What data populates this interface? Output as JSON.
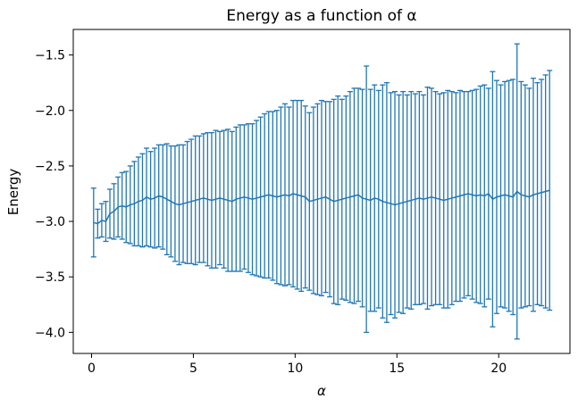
{
  "chart_data": {
    "type": "errorbar",
    "title": "Energy as a function of α",
    "xlabel": "α",
    "ylabel": "Energy",
    "xlim": [
      -0.9,
      23.5
    ],
    "ylim": [
      -4.19,
      -1.27
    ],
    "xticks": [
      0,
      5,
      10,
      15,
      20
    ],
    "yticks": [
      -4.0,
      -3.5,
      -3.0,
      -2.5,
      -2.0,
      -1.5
    ],
    "xtick_labels": [
      "0",
      "5",
      "10",
      "15",
      "20"
    ],
    "ytick_labels": [
      "−4.0",
      "−3.5",
      "−3.0",
      "−2.5",
      "−2.0",
      "−1.5"
    ],
    "grid": false,
    "color": "#1f77b4",
    "series": [
      {
        "x": [
          0.1,
          0.3,
          0.5,
          0.7,
          0.9,
          1.1,
          1.3,
          1.5,
          1.7,
          1.9,
          2.1,
          2.3,
          2.5,
          2.7,
          2.9,
          3.1,
          3.3,
          3.5,
          3.7,
          3.9,
          4.1,
          4.3,
          4.5,
          4.7,
          4.9,
          5.1,
          5.3,
          5.5,
          5.7,
          5.9,
          6.1,
          6.3,
          6.5,
          6.7,
          6.9,
          7.1,
          7.3,
          7.5,
          7.7,
          7.9,
          8.1,
          8.3,
          8.5,
          8.7,
          8.9,
          9.1,
          9.3,
          9.5,
          9.7,
          9.9,
          10.1,
          10.3,
          10.5,
          10.7,
          10.9,
          11.1,
          11.3,
          11.5,
          11.7,
          11.9,
          12.1,
          12.3,
          12.5,
          12.7,
          12.9,
          13.1,
          13.3,
          13.5,
          13.7,
          13.9,
          14.1,
          14.3,
          14.5,
          14.7,
          14.9,
          15.1,
          15.3,
          15.5,
          15.7,
          15.9,
          16.1,
          16.3,
          16.5,
          16.7,
          16.9,
          17.1,
          17.3,
          17.5,
          17.7,
          17.9,
          18.1,
          18.3,
          18.5,
          18.7,
          18.9,
          19.1,
          19.3,
          19.5,
          19.7,
          19.9,
          20.1,
          20.3,
          20.5,
          20.7,
          20.9,
          21.1,
          21.3,
          21.5,
          21.7,
          21.9,
          22.1,
          22.3,
          22.5
        ],
        "y": [
          -3.01,
          -3.02,
          -2.99,
          -3.0,
          -2.93,
          -2.91,
          -2.87,
          -2.86,
          -2.87,
          -2.85,
          -2.84,
          -2.82,
          -2.81,
          -2.78,
          -2.8,
          -2.79,
          -2.77,
          -2.78,
          -2.8,
          -2.82,
          -2.84,
          -2.85,
          -2.84,
          -2.83,
          -2.82,
          -2.81,
          -2.8,
          -2.79,
          -2.8,
          -2.81,
          -2.8,
          -2.79,
          -2.8,
          -2.81,
          -2.82,
          -2.8,
          -2.79,
          -2.78,
          -2.79,
          -2.8,
          -2.79,
          -2.78,
          -2.77,
          -2.76,
          -2.77,
          -2.78,
          -2.77,
          -2.76,
          -2.77,
          -2.75,
          -2.76,
          -2.77,
          -2.78,
          -2.82,
          -2.81,
          -2.8,
          -2.79,
          -2.78,
          -2.8,
          -2.82,
          -2.81,
          -2.8,
          -2.79,
          -2.78,
          -2.77,
          -2.76,
          -2.79,
          -2.8,
          -2.81,
          -2.79,
          -2.8,
          -2.82,
          -2.83,
          -2.84,
          -2.85,
          -2.84,
          -2.83,
          -2.82,
          -2.81,
          -2.8,
          -2.79,
          -2.8,
          -2.79,
          -2.78,
          -2.79,
          -2.8,
          -2.81,
          -2.8,
          -2.79,
          -2.78,
          -2.77,
          -2.76,
          -2.75,
          -2.76,
          -2.77,
          -2.76,
          -2.77,
          -2.75,
          -2.8,
          -2.78,
          -2.77,
          -2.76,
          -2.77,
          -2.78,
          -2.73,
          -2.76,
          -2.77,
          -2.78,
          -2.76,
          -2.75,
          -2.74,
          -2.73,
          -2.72
        ],
        "err": [
          0.31,
          0.13,
          0.15,
          0.18,
          0.22,
          0.25,
          0.27,
          0.3,
          0.32,
          0.35,
          0.38,
          0.4,
          0.42,
          0.44,
          0.43,
          0.45,
          0.46,
          0.47,
          0.5,
          0.5,
          0.52,
          0.54,
          0.53,
          0.55,
          0.56,
          0.58,
          0.57,
          0.58,
          0.6,
          0.61,
          0.62,
          0.6,
          0.62,
          0.64,
          0.63,
          0.65,
          0.66,
          0.65,
          0.67,
          0.68,
          0.7,
          0.72,
          0.74,
          0.75,
          0.76,
          0.78,
          0.8,
          0.82,
          0.8,
          0.84,
          0.85,
          0.86,
          0.82,
          0.8,
          0.84,
          0.86,
          0.88,
          0.86,
          0.88,
          0.92,
          0.94,
          0.9,
          0.92,
          0.95,
          0.97,
          0.96,
          0.98,
          1.2,
          1.0,
          1.02,
          0.98,
          1.05,
          1.08,
          1.0,
          1.02,
          0.98,
          1.0,
          0.96,
          0.98,
          0.95,
          0.96,
          0.94,
          1.0,
          0.98,
          0.96,
          0.95,
          0.97,
          0.98,
          0.96,
          0.94,
          0.95,
          0.93,
          0.92,
          0.94,
          0.96,
          0.98,
          1.0,
          0.95,
          1.15,
          1.05,
          1.0,
          1.02,
          1.04,
          1.06,
          1.33,
          1.02,
          1.0,
          0.98,
          1.05,
          1.0,
          1.02,
          1.05,
          1.08
        ]
      }
    ]
  }
}
